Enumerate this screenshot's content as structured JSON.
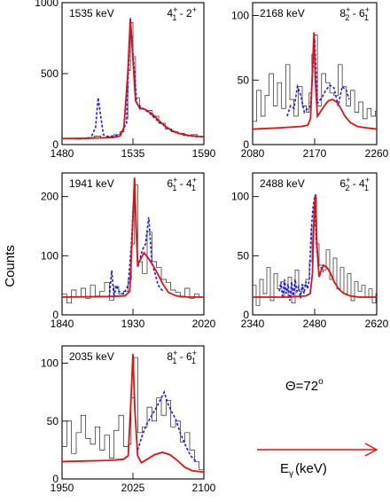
{
  "chart_data": [
    {
      "type": "line",
      "energy_label": "1535 keV",
      "transition": {
        "from": "4",
        "from_sub": "1",
        "to": "2",
        "to_sub": "",
        "sup_to": "+"
      },
      "xlim": [
        1480,
        1590
      ],
      "ylim": [
        0,
        1000
      ],
      "xticks": [
        1480,
        1535,
        1590
      ],
      "yticks": [
        0,
        500,
        1000
      ],
      "series": [
        {
          "style": "histogram",
          "x": [
            1480,
            1485,
            1490,
            1495,
            1500,
            1505,
            1510,
            1515,
            1520,
            1525,
            1528,
            1531,
            1533,
            1535,
            1537,
            1540,
            1545,
            1550,
            1555,
            1560,
            1565,
            1570,
            1575,
            1580,
            1585,
            1590
          ],
          "values": [
            40,
            45,
            38,
            42,
            50,
            60,
            45,
            55,
            70,
            90,
            180,
            520,
            860,
            620,
            330,
            250,
            240,
            200,
            150,
            110,
            90,
            80,
            65,
            70,
            55,
            60
          ]
        },
        {
          "style": "blue-dashed",
          "x": [
            1503,
            1506,
            1508,
            1510,
            1512,
            1515,
            1520,
            1525,
            1530,
            1533,
            1535,
            1538,
            1542,
            1548,
            1555,
            1565,
            1575,
            1585
          ],
          "values": [
            60,
            120,
            330,
            200,
            70,
            58,
            60,
            70,
            150,
            880,
            650,
            290,
            260,
            220,
            160,
            95,
            65,
            55
          ]
        },
        {
          "style": "red-fit",
          "x": [
            1480,
            1500,
            1520,
            1525,
            1528,
            1531,
            1533,
            1535,
            1537,
            1540,
            1545,
            1550,
            1555,
            1560,
            1565,
            1570,
            1575,
            1580,
            1585,
            1590
          ],
          "values": [
            42,
            44,
            50,
            60,
            120,
            500,
            890,
            600,
            310,
            260,
            245,
            215,
            170,
            130,
            100,
            80,
            70,
            62,
            58,
            55
          ]
        }
      ]
    },
    {
      "type": "line",
      "energy_label": "2168 keV",
      "transition": {
        "from": "8",
        "from_sub": "2",
        "to": "6",
        "to_sub": "1",
        "sup_to": "+"
      },
      "xlim": [
        2080,
        2260
      ],
      "ylim": [
        0,
        110
      ],
      "xticks": [
        2080,
        2170,
        2260
      ],
      "yticks": [
        0,
        50,
        100
      ],
      "series": [
        {
          "style": "histogram",
          "x": [
            2080,
            2086,
            2092,
            2098,
            2104,
            2110,
            2116,
            2122,
            2128,
            2134,
            2140,
            2146,
            2152,
            2158,
            2162,
            2166,
            2170,
            2174,
            2180,
            2186,
            2192,
            2198,
            2204,
            2210,
            2216,
            2222,
            2228,
            2234,
            2240,
            2246,
            2252,
            2258
          ],
          "values": [
            18,
            42,
            22,
            38,
            55,
            30,
            48,
            28,
            62,
            35,
            22,
            45,
            30,
            25,
            40,
            70,
            85,
            30,
            55,
            48,
            40,
            38,
            62,
            45,
            30,
            42,
            25,
            33,
            20,
            28,
            22,
            26
          ]
        },
        {
          "style": "blue-dashed",
          "x": [
            2130,
            2135,
            2140,
            2145,
            2150,
            2155,
            2160,
            2164,
            2167,
            2170,
            2174,
            2180,
            2186,
            2192,
            2198,
            2204,
            2210,
            2216,
            2220
          ],
          "values": [
            22,
            30,
            28,
            45,
            38,
            25,
            28,
            30,
            55,
            82,
            32,
            36,
            42,
            46,
            44,
            30,
            45,
            42,
            35
          ]
        },
        {
          "style": "red-fit",
          "x": [
            2080,
            2120,
            2150,
            2160,
            2164,
            2167,
            2169,
            2171,
            2174,
            2178,
            2184,
            2190,
            2196,
            2202,
            2208,
            2214,
            2222,
            2232,
            2245,
            2260
          ],
          "values": [
            12,
            13,
            14,
            15,
            20,
            60,
            87,
            50,
            22,
            25,
            30,
            34,
            35,
            33,
            28,
            22,
            17,
            14,
            13,
            12
          ]
        }
      ]
    },
    {
      "type": "line",
      "energy_label": "1941 keV",
      "transition": {
        "from": "6",
        "from_sub": "1",
        "to": "4",
        "to_sub": "1",
        "sup_to": "+"
      },
      "xlim": [
        1840,
        2020
      ],
      "ylim": [
        0,
        240
      ],
      "xticks": [
        1840,
        1930,
        2020
      ],
      "yticks": [
        0,
        100,
        200
      ],
      "series": [
        {
          "style": "histogram",
          "x": [
            1840,
            1846,
            1852,
            1858,
            1864,
            1870,
            1876,
            1882,
            1888,
            1894,
            1900,
            1906,
            1912,
            1918,
            1924,
            1928,
            1932,
            1936,
            1942,
            1948,
            1954,
            1960,
            1966,
            1972,
            1978,
            1984,
            1990,
            1996,
            2002,
            2008,
            2014
          ],
          "values": [
            35,
            20,
            42,
            30,
            45,
            28,
            50,
            32,
            40,
            55,
            25,
            48,
            35,
            40,
            60,
            120,
            220,
            90,
            70,
            140,
            90,
            80,
            60,
            55,
            42,
            38,
            30,
            45,
            28,
            35,
            30
          ]
        },
        {
          "style": "blue-dashed",
          "x": [
            1900,
            1903,
            1906,
            1909,
            1912,
            1918,
            1924,
            1928,
            1932,
            1936,
            1942,
            1946,
            1950,
            1954,
            1958,
            1962,
            1968
          ],
          "values": [
            30,
            75,
            30,
            50,
            40,
            35,
            50,
            120,
            230,
            80,
            110,
            120,
            165,
            90,
            70,
            50,
            40
          ]
        },
        {
          "style": "red-fit",
          "x": [
            1840,
            1900,
            1920,
            1926,
            1929,
            1932,
            1934,
            1936,
            1940,
            1944,
            1950,
            1956,
            1962,
            1968,
            1975,
            1985,
            2000,
            2020
          ],
          "values": [
            30,
            31,
            32,
            40,
            130,
            232,
            150,
            85,
            95,
            105,
            95,
            82,
            68,
            52,
            38,
            32,
            30,
            30
          ]
        }
      ]
    },
    {
      "type": "line",
      "energy_label": "2488 keV",
      "transition": {
        "from": "6",
        "from_sub": "2",
        "to": "4",
        "to_sub": "1",
        "sup_to": "+"
      },
      "xlim": [
        2340,
        2620
      ],
      "ylim": [
        0,
        120
      ],
      "xticks": [
        2340,
        2480,
        2620
      ],
      "yticks": [
        0,
        50,
        100
      ],
      "series": [
        {
          "style": "histogram",
          "x": [
            2340,
            2348,
            2356,
            2364,
            2372,
            2380,
            2388,
            2396,
            2404,
            2412,
            2420,
            2428,
            2436,
            2444,
            2452,
            2460,
            2468,
            2474,
            2480,
            2484,
            2490,
            2498,
            2506,
            2514,
            2522,
            2530,
            2538,
            2546,
            2554,
            2562,
            2570,
            2578,
            2586,
            2594,
            2602,
            2610,
            2618
          ],
          "values": [
            25,
            8,
            30,
            18,
            40,
            12,
            35,
            22,
            28,
            15,
            32,
            10,
            38,
            20,
            25,
            30,
            45,
            75,
            100,
            60,
            42,
            38,
            55,
            30,
            48,
            22,
            40,
            18,
            35,
            12,
            28,
            20,
            25,
            15,
            22,
            10,
            18
          ]
        },
        {
          "style": "blue-dashed",
          "x": [
            2400,
            2404,
            2408,
            2412,
            2416,
            2420,
            2424,
            2428,
            2432,
            2436,
            2440,
            2444,
            2448,
            2452,
            2456,
            2460,
            2464,
            2468,
            2472,
            2476,
            2480,
            2484,
            2488,
            2494,
            2500
          ],
          "values": [
            20,
            28,
            14,
            30,
            18,
            26,
            12,
            28,
            16,
            30,
            20,
            24,
            14,
            26,
            18,
            28,
            22,
            30,
            70,
            90,
            100,
            60,
            42,
            40,
            36
          ]
        },
        {
          "style": "red-fit",
          "x": [
            2340,
            2420,
            2460,
            2470,
            2475,
            2479,
            2482,
            2485,
            2490,
            2495,
            2500,
            2508,
            2516,
            2524,
            2534,
            2546,
            2560,
            2580,
            2620
          ],
          "values": [
            15,
            15,
            16,
            18,
            35,
            90,
            102,
            60,
            32,
            38,
            42,
            40,
            35,
            28,
            22,
            18,
            16,
            15,
            15
          ]
        }
      ]
    },
    {
      "type": "line",
      "energy_label": "2035 keV",
      "transition": {
        "from": "8",
        "from_sub": "1",
        "to": "6",
        "to_sub": "1",
        "sup_to": "+"
      },
      "xlim": [
        1950,
        2100
      ],
      "ylim": [
        0,
        115
      ],
      "xticks": [
        1950,
        2025,
        2100
      ],
      "yticks": [
        0,
        50,
        100
      ],
      "series": [
        {
          "style": "histogram",
          "x": [
            1950,
            1955,
            1960,
            1965,
            1970,
            1975,
            1980,
            1985,
            1990,
            1995,
            2000,
            2005,
            2010,
            2015,
            2020,
            2023,
            2026,
            2030,
            2035,
            2040,
            2045,
            2050,
            2055,
            2060,
            2065,
            2070,
            2075,
            2080,
            2085,
            2090,
            2095
          ],
          "values": [
            28,
            50,
            22,
            40,
            55,
            35,
            30,
            45,
            25,
            38,
            18,
            42,
            55,
            28,
            30,
            70,
            105,
            40,
            45,
            62,
            50,
            70,
            55,
            68,
            45,
            50,
            32,
            40,
            25,
            15,
            8
          ]
        },
        {
          "style": "blue-dashed",
          "x": [
            2030,
            2035,
            2040,
            2045,
            2050,
            2055,
            2058,
            2062,
            2066,
            2070,
            2075,
            2080,
            2086,
            2092
          ],
          "values": [
            25,
            38,
            48,
            55,
            62,
            70,
            75,
            65,
            58,
            52,
            40,
            30,
            20,
            15
          ]
        },
        {
          "style": "red-fit",
          "x": [
            1950,
            2000,
            2015,
            2020,
            2023,
            2025,
            2027,
            2030,
            2034,
            2040,
            2048,
            2056,
            2064,
            2072,
            2080,
            2088,
            2100
          ],
          "values": [
            15,
            16,
            17,
            20,
            70,
            108,
            60,
            20,
            14,
            17,
            21,
            23,
            21,
            16,
            10,
            7,
            6
          ]
        }
      ]
    }
  ],
  "ylabel": "Counts",
  "xlabel_main": "E",
  "xlabel_sub": "γ",
  "xlabel_unit": "(keV)",
  "theta": {
    "prefix": "Θ=72",
    "sup": "o"
  },
  "colors": {
    "data": "#222222",
    "simulation": "#1a1aff",
    "fit": "#e31010"
  }
}
